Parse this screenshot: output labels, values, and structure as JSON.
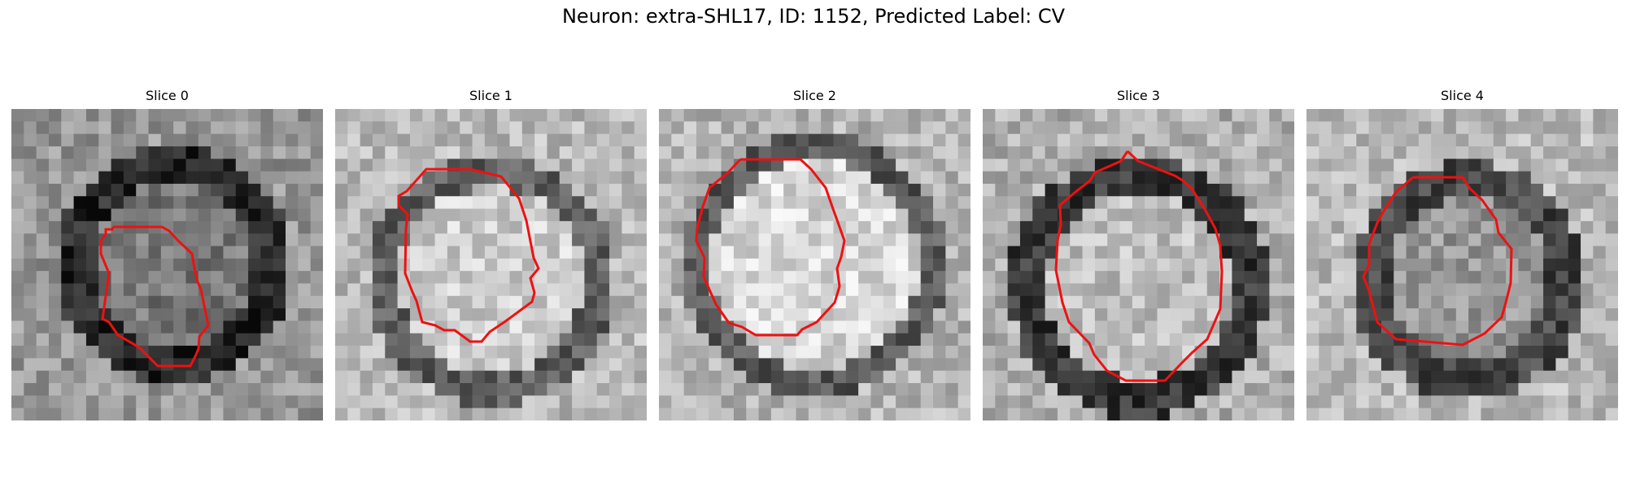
{
  "figure": {
    "title": "Neuron: extra-SHL17, ID: 1152, Predicted Label: CV"
  },
  "colors": {
    "contour": "#ee1111",
    "background": "#ffffff"
  },
  "panels": [
    {
      "title": "Slice 0"
    },
    {
      "title": "Slice 1"
    },
    {
      "title": "Slice 2"
    },
    {
      "title": "Slice 3"
    },
    {
      "title": "Slice 4"
    }
  ]
}
